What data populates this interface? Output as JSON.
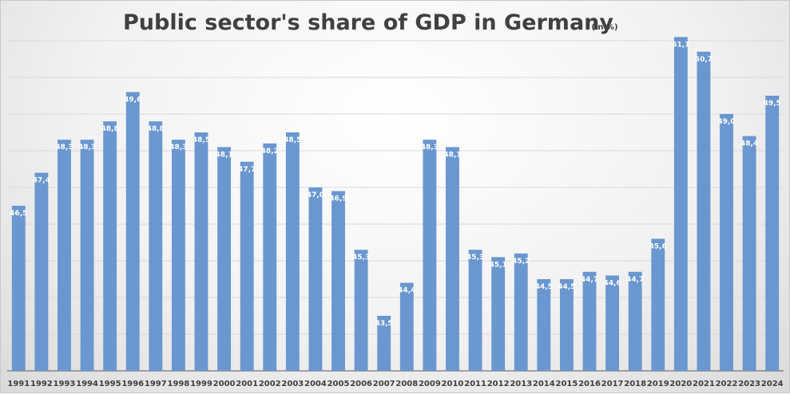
{
  "chart_data": {
    "type": "bar",
    "title": "Public sector's share of GDP in Germany",
    "subtitle": "(in %)",
    "xlabel": "",
    "ylabel": "",
    "ylim": [
      42.0,
      52.0
    ],
    "grid": true,
    "legend": "none",
    "bar_color": "#6a97cf",
    "categories": [
      "1991",
      "1992",
      "1993",
      "1994",
      "1995",
      "1996",
      "1997",
      "1998",
      "1999",
      "2000",
      "2001",
      "2002",
      "2003",
      "2004",
      "2005",
      "2006",
      "2007",
      "2008",
      "2009",
      "2010",
      "2011",
      "2012",
      "2013",
      "2014",
      "2015",
      "2016",
      "2017",
      "2018",
      "2019",
      "2020",
      "2021",
      "2022",
      "2023",
      "2024"
    ],
    "values": [
      46.5,
      47.4,
      48.3,
      48.3,
      48.8,
      49.6,
      48.8,
      48.3,
      48.5,
      48.1,
      47.7,
      48.2,
      48.5,
      47.0,
      46.9,
      45.3,
      43.5,
      44.4,
      48.3,
      48.1,
      45.3,
      45.1,
      45.2,
      44.5,
      44.5,
      44.7,
      44.6,
      44.7,
      45.6,
      51.1,
      50.7,
      49.0,
      48.4,
      49.5
    ],
    "labels": [
      "46,5",
      "47,4",
      "48,3",
      "48,3",
      "48,8",
      "49,6",
      "48,8",
      "48,3",
      "48,5",
      "48,1",
      "47,7",
      "48,2",
      "48,5",
      "47,0",
      "46,9",
      "45,3",
      "43,5",
      "44,4",
      "48,3",
      "48,1",
      "45,3",
      "45,1",
      "45,2",
      "44,5",
      "44,5",
      "44,7",
      "44,6",
      "44,7",
      "45,6",
      "51,1",
      "50,7",
      "49,0",
      "48,4",
      "49,5"
    ]
  }
}
